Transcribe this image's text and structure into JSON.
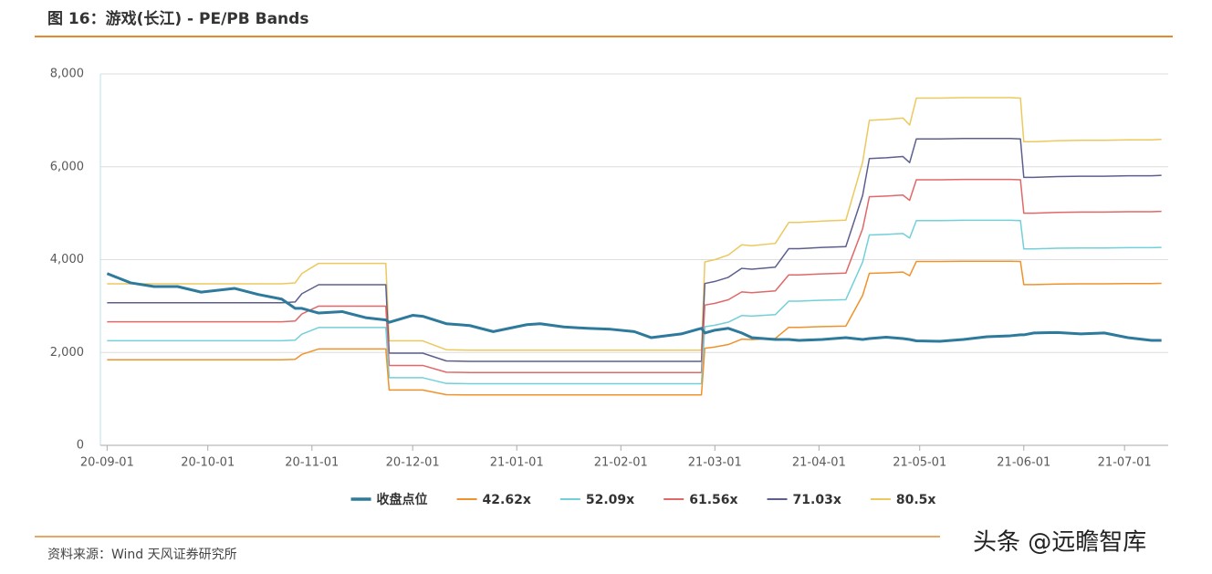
{
  "chart_data": {
    "type": "line",
    "title": "图 16：游戏(长江) - PE/PB Bands",
    "x": [
      "2020-09-01",
      "2020-09-08",
      "2020-09-15",
      "2020-09-22",
      "2020-09-29",
      "2020-10-09",
      "2020-10-16",
      "2020-10-23",
      "2020-10-27",
      "2020-10-29",
      "2020-11-03",
      "2020-11-10",
      "2020-11-17",
      "2020-11-23",
      "2020-11-24",
      "2020-12-01",
      "2020-12-04",
      "2020-12-11",
      "2020-12-18",
      "2020-12-25",
      "2021-01-04",
      "2021-01-08",
      "2021-01-15",
      "2021-01-22",
      "2021-01-29",
      "2021-02-05",
      "2021-02-10",
      "2021-02-19",
      "2021-02-25",
      "2021-02-26",
      "2021-03-01",
      "2021-03-05",
      "2021-03-09",
      "2021-03-12",
      "2021-03-19",
      "2021-03-23",
      "2021-03-26",
      "2021-04-02",
      "2021-04-09",
      "2021-04-14",
      "2021-04-16",
      "2021-04-21",
      "2021-04-26",
      "2021-04-28",
      "2021-04-30",
      "2021-05-07",
      "2021-05-14",
      "2021-05-21",
      "2021-05-28",
      "2021-05-31",
      "2021-06-01",
      "2021-06-04",
      "2021-06-11",
      "2021-06-18",
      "2021-06-25",
      "2021-07-02",
      "2021-07-09",
      "2021-07-12"
    ],
    "series": [
      {
        "name": "收盘点位",
        "color": "#2e7a9c",
        "width": 3,
        "values": [
          3700,
          3500,
          3420,
          3420,
          3300,
          3380,
          3250,
          3150,
          2950,
          2950,
          2850,
          2880,
          2750,
          2700,
          2650,
          2800,
          2780,
          2620,
          2580,
          2450,
          2600,
          2620,
          2550,
          2520,
          2500,
          2450,
          2320,
          2400,
          2520,
          2420,
          2480,
          2520,
          2420,
          2320,
          2280,
          2280,
          2260,
          2280,
          2320,
          2280,
          2300,
          2330,
          2300,
          2280,
          2250,
          2240,
          2280,
          2340,
          2360,
          2380,
          2380,
          2420,
          2430,
          2400,
          2420,
          2320,
          2260,
          2260
        ]
      },
      {
        "name": "42.62x",
        "color": "#f0922b",
        "width": 1.5,
        "values": [
          1842,
          1842,
          1842,
          1842,
          1842,
          1842,
          1842,
          1842,
          1853,
          1959,
          2075,
          2075,
          2075,
          2075,
          1191,
          1191,
          1191,
          1091,
          1085,
          1085,
          1085,
          1085,
          1085,
          1085,
          1085,
          1085,
          1085,
          1085,
          1085,
          2091,
          2118,
          2171,
          2287,
          2277,
          2303,
          2541,
          2541,
          2557,
          2568,
          3229,
          3706,
          3716,
          3732,
          3653,
          3960,
          3960,
          3965,
          3965,
          3965,
          3960,
          3462,
          3462,
          3473,
          3478,
          3478,
          3483,
          3483,
          3489
        ]
      },
      {
        "name": "52.09x",
        "color": "#72d0d8",
        "width": 1.5,
        "values": [
          2252,
          2252,
          2252,
          2252,
          2252,
          2252,
          2252,
          2252,
          2265,
          2394,
          2537,
          2537,
          2537,
          2537,
          1456,
          1456,
          1456,
          1333,
          1327,
          1327,
          1327,
          1327,
          1327,
          1327,
          1327,
          1327,
          1327,
          1327,
          1327,
          2556,
          2588,
          2653,
          2795,
          2783,
          2815,
          3106,
          3106,
          3126,
          3138,
          3947,
          4530,
          4543,
          4562,
          4465,
          4840,
          4840,
          4847,
          4847,
          4847,
          4840,
          4232,
          4232,
          4245,
          4251,
          4251,
          4258,
          4258,
          4264
        ]
      },
      {
        "name": "61.56x",
        "color": "#e06868",
        "width": 1.5,
        "values": [
          2661,
          2661,
          2661,
          2661,
          2661,
          2661,
          2661,
          2661,
          2677,
          2829,
          2998,
          2998,
          2998,
          2998,
          1721,
          1721,
          1721,
          1575,
          1568,
          1568,
          1568,
          1568,
          1568,
          1568,
          1568,
          1568,
          1568,
          1568,
          1568,
          3021,
          3059,
          3135,
          3304,
          3288,
          3327,
          3671,
          3671,
          3694,
          3709,
          4665,
          5353,
          5368,
          5391,
          5277,
          5720,
          5720,
          5728,
          5728,
          5728,
          5720,
          5001,
          5001,
          5017,
          5024,
          5024,
          5032,
          5032,
          5040
        ]
      },
      {
        "name": "71.03x",
        "color": "#5c5f8e",
        "width": 1.5,
        "values": [
          3071,
          3071,
          3071,
          3071,
          3071,
          3071,
          3071,
          3071,
          3088,
          3265,
          3459,
          3459,
          3459,
          3459,
          1985,
          1985,
          1985,
          1818,
          1809,
          1809,
          1809,
          1809,
          1809,
          1809,
          1809,
          1809,
          1809,
          1809,
          1809,
          3485,
          3530,
          3618,
          3812,
          3794,
          3838,
          4236,
          4236,
          4262,
          4280,
          5383,
          6177,
          6194,
          6221,
          6089,
          6600,
          6600,
          6609,
          6609,
          6609,
          6600,
          5771,
          5771,
          5789,
          5797,
          5797,
          5806,
          5806,
          5815
        ]
      },
      {
        "name": "80.5x",
        "color": "#ebc95e",
        "width": 1.5,
        "values": [
          3480,
          3480,
          3480,
          3480,
          3480,
          3480,
          3480,
          3480,
          3500,
          3700,
          3920,
          3920,
          3920,
          3920,
          2250,
          2250,
          2250,
          2060,
          2050,
          2050,
          2050,
          2050,
          2050,
          2050,
          2050,
          2050,
          2050,
          2050,
          2050,
          3950,
          4000,
          4100,
          4320,
          4300,
          4350,
          4800,
          4800,
          4830,
          4850,
          6100,
          7000,
          7020,
          7050,
          6900,
          7480,
          7480,
          7490,
          7490,
          7490,
          7480,
          6540,
          6540,
          6560,
          6570,
          6570,
          6580,
          6580,
          6590
        ]
      }
    ],
    "xlim": [
      "2020-08-30",
      "2021-07-14"
    ],
    "xticks": [
      {
        "value": "2020-09-01",
        "label": "20-09-01"
      },
      {
        "value": "2020-10-01",
        "label": "20-10-01"
      },
      {
        "value": "2020-11-01",
        "label": "20-11-01"
      },
      {
        "value": "2020-12-01",
        "label": "20-12-01"
      },
      {
        "value": "2021-01-01",
        "label": "21-01-01"
      },
      {
        "value": "2021-02-01",
        "label": "21-02-01"
      },
      {
        "value": "2021-03-01",
        "label": "21-03-01"
      },
      {
        "value": "2021-04-01",
        "label": "21-04-01"
      },
      {
        "value": "2021-05-01",
        "label": "21-05-01"
      },
      {
        "value": "2021-06-01",
        "label": "21-06-01"
      },
      {
        "value": "2021-07-01",
        "label": "21-07-01"
      }
    ],
    "ylim": [
      0,
      8000
    ],
    "yticks": [
      0,
      {
        "value": 2000,
        "label": "2,000"
      },
      {
        "value": 4000,
        "label": "4,000"
      },
      {
        "value": 6000,
        "label": "6,000"
      },
      {
        "value": 8000,
        "label": "8,000"
      }
    ],
    "grid": true,
    "legend": "bottom"
  },
  "source": "资料来源：Wind 天风证券研究所",
  "watermark": "头条 @远瞻智库"
}
